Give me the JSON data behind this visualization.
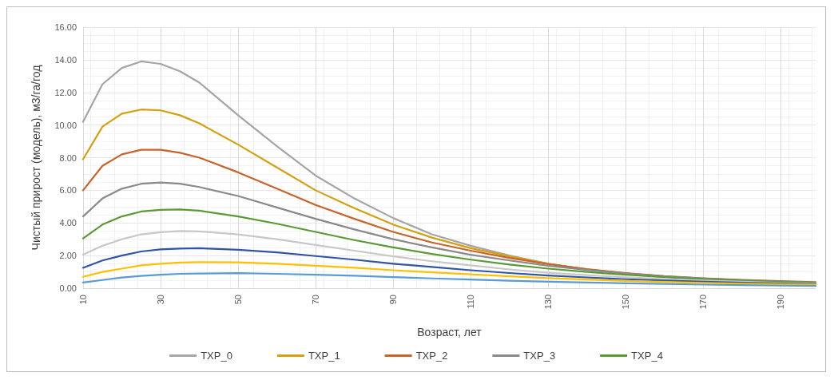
{
  "chart_data": {
    "type": "line",
    "xlabel": "Возраст, лет",
    "ylabel": "Чистый прирост (модель), м3/га/год",
    "x": [
      10,
      15,
      20,
      25,
      30,
      35,
      40,
      50,
      60,
      70,
      80,
      90,
      100,
      110,
      120,
      130,
      140,
      150,
      160,
      170,
      180,
      190,
      199
    ],
    "xlim": [
      10,
      199
    ],
    "xticks": [
      10,
      30,
      50,
      70,
      90,
      110,
      130,
      150,
      170,
      190
    ],
    "ylim": [
      0,
      16
    ],
    "yticks": [
      {
        "value": 0,
        "label": "0.00"
      },
      {
        "value": 2,
        "label": "2.00"
      },
      {
        "value": 4,
        "label": "4.00"
      },
      {
        "value": 6,
        "label": "6.00"
      },
      {
        "value": 8,
        "label": "8.00"
      },
      {
        "value": 10,
        "label": "10.00"
      },
      {
        "value": 12,
        "label": "12.00"
      },
      {
        "value": 14,
        "label": "14.00"
      },
      {
        "value": 16,
        "label": "16.00"
      }
    ],
    "grid": true,
    "legend": "bottom",
    "marker": "none",
    "line_style": "solid",
    "series": [
      {
        "name": "TXP_0",
        "color": "#a5a5a5",
        "values": [
          10.2,
          12.5,
          13.5,
          13.9,
          13.75,
          13.3,
          12.6,
          10.6,
          8.7,
          6.9,
          5.5,
          4.3,
          3.3,
          2.6,
          2.0,
          1.5,
          1.15,
          0.9,
          0.7,
          0.55,
          0.45,
          0.38,
          0.33
        ]
      },
      {
        "name": "TXP_1",
        "color": "#d4a00f",
        "values": [
          7.9,
          9.9,
          10.7,
          10.95,
          10.9,
          10.6,
          10.1,
          8.8,
          7.4,
          6.0,
          4.9,
          3.9,
          3.1,
          2.45,
          1.95,
          1.5,
          1.15,
          0.9,
          0.7,
          0.56,
          0.45,
          0.37,
          0.32
        ]
      },
      {
        "name": "TXP_2",
        "color": "#c8642a",
        "values": [
          6.0,
          7.5,
          8.2,
          8.48,
          8.48,
          8.3,
          8.0,
          7.1,
          6.1,
          5.1,
          4.25,
          3.45,
          2.8,
          2.3,
          1.85,
          1.48,
          1.17,
          0.93,
          0.74,
          0.61,
          0.51,
          0.43,
          0.37
        ]
      },
      {
        "name": "TXP_3",
        "color": "#8a8a8a",
        "values": [
          4.4,
          5.5,
          6.1,
          6.4,
          6.48,
          6.4,
          6.2,
          5.65,
          4.95,
          4.25,
          3.6,
          3.0,
          2.5,
          2.05,
          1.7,
          1.38,
          1.12,
          0.9,
          0.73,
          0.59,
          0.48,
          0.4,
          0.34
        ]
      },
      {
        "name": "TXP_4",
        "color": "#5a9a35",
        "values": [
          3.05,
          3.9,
          4.4,
          4.7,
          4.8,
          4.83,
          4.75,
          4.4,
          3.95,
          3.45,
          2.95,
          2.5,
          2.1,
          1.75,
          1.45,
          1.2,
          1.0,
          0.82,
          0.68,
          0.56,
          0.47,
          0.39,
          0.34
        ]
      },
      {
        "color": "#c8c8c8",
        "values": [
          2.05,
          2.6,
          3.0,
          3.3,
          3.43,
          3.5,
          3.48,
          3.3,
          3.0,
          2.65,
          2.3,
          1.95,
          1.65,
          1.4,
          1.15,
          0.95,
          0.8,
          0.67,
          0.56,
          0.47,
          0.4,
          0.33,
          0.29
        ]
      },
      {
        "color": "#2f55a4",
        "values": [
          1.25,
          1.7,
          2.0,
          2.25,
          2.38,
          2.43,
          2.45,
          2.35,
          2.2,
          1.97,
          1.75,
          1.5,
          1.3,
          1.1,
          0.93,
          0.78,
          0.66,
          0.55,
          0.47,
          0.4,
          0.34,
          0.29,
          0.25
        ]
      },
      {
        "color": "#ffc000",
        "values": [
          0.7,
          1.0,
          1.2,
          1.4,
          1.5,
          1.57,
          1.6,
          1.58,
          1.5,
          1.38,
          1.25,
          1.1,
          0.97,
          0.85,
          0.73,
          0.62,
          0.53,
          0.45,
          0.39,
          0.33,
          0.28,
          0.24,
          0.21
        ]
      },
      {
        "color": "#5b9bd5",
        "values": [
          0.35,
          0.5,
          0.65,
          0.75,
          0.83,
          0.88,
          0.9,
          0.92,
          0.88,
          0.83,
          0.76,
          0.68,
          0.6,
          0.53,
          0.46,
          0.4,
          0.35,
          0.3,
          0.26,
          0.22,
          0.19,
          0.16,
          0.14
        ]
      }
    ]
  }
}
